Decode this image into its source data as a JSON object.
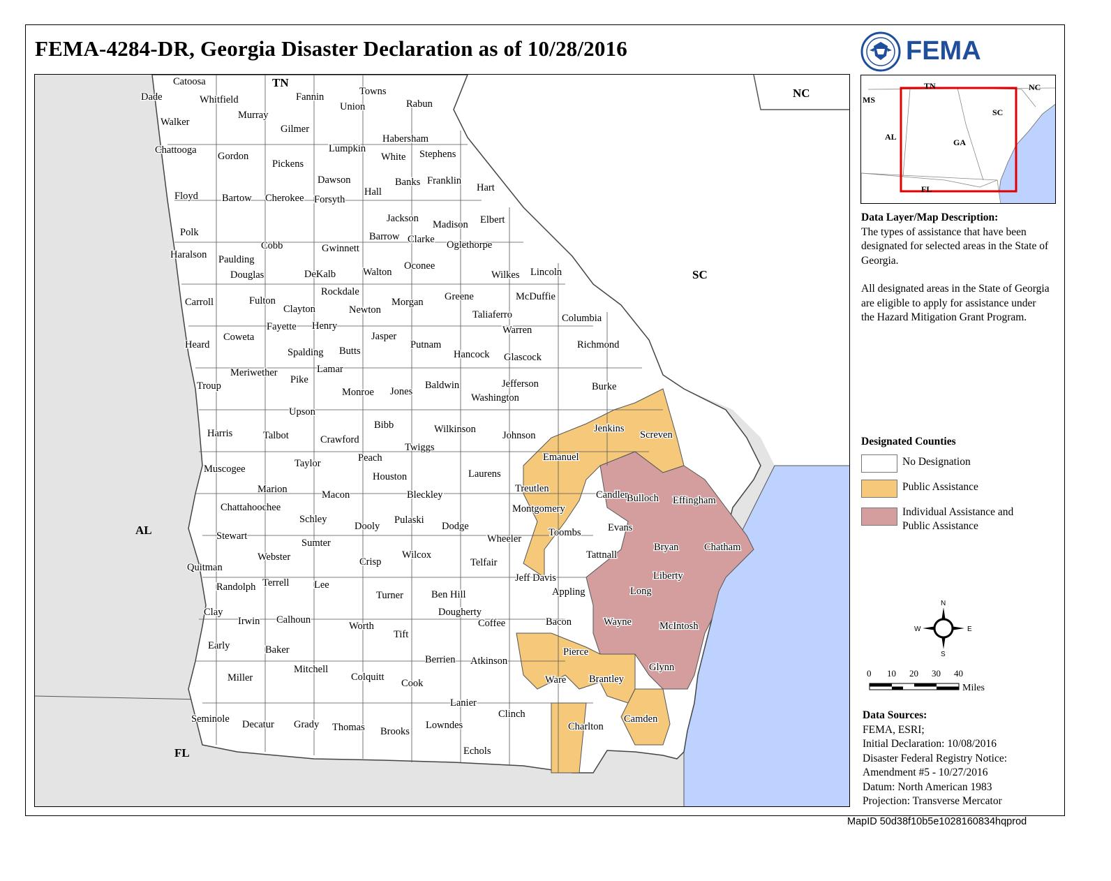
{
  "title": "FEMA-4284-DR, Georgia Disaster Declaration as of 10/28/2016",
  "logo": {
    "text": "FEMA",
    "icon": "dhs-seal-icon"
  },
  "colors": {
    "no_designation": "#ffffff",
    "public_assistance": "#f5c87a",
    "individual_public_assistance": "#d59e9e",
    "water": "#bed2ff",
    "neighbor_land": "#e4e4e4"
  },
  "map": {
    "state_labels": [
      "TN",
      "NC",
      "SC",
      "AL",
      "FL"
    ],
    "counties": [
      "Catoosa",
      "Dade",
      "Whitfield",
      "Murray",
      "Walker",
      "Fannin",
      "Union",
      "Towns",
      "Rabun",
      "Gilmer",
      "Chattooga",
      "Gordon",
      "Pickens",
      "Lumpkin",
      "Habersham",
      "White",
      "Stephens",
      "Floyd",
      "Bartow",
      "Cherokee",
      "Dawson",
      "Forsyth",
      "Hall",
      "Banks",
      "Franklin",
      "Hart",
      "Jackson",
      "Madison",
      "Elbert",
      "Polk",
      "Haralson",
      "Cobb",
      "Paulding",
      "Douglas",
      "Barrow",
      "Clarke",
      "Oglethorpe",
      "Gwinnett",
      "DeKalb",
      "Walton",
      "Oconee",
      "Wilkes",
      "Lincoln",
      "Carroll",
      "Fulton",
      "Rockdale",
      "Newton",
      "Morgan",
      "Greene",
      "McDuffie",
      "Columbia",
      "Clayton",
      "Fayette",
      "Henry",
      "Taliaferro",
      "Warren",
      "Heard",
      "Coweta",
      "Spalding",
      "Butts",
      "Jasper",
      "Putnam",
      "Hancock",
      "Glascock",
      "Richmond",
      "Meriwether",
      "Lamar",
      "Pike",
      "Troup",
      "Monroe",
      "Jones",
      "Baldwin",
      "Jefferson",
      "Burke",
      "Washington",
      "Upson",
      "Bibb",
      "Harris",
      "Talbot",
      "Crawford",
      "Wilkinson",
      "Johnson",
      "Jenkins",
      "Screven",
      "Twiggs",
      "Emanuel",
      "Peach",
      "Taylor",
      "Muscogee",
      "Houston",
      "Laurens",
      "Marion",
      "Macon",
      "Bleckley",
      "Treutlen",
      "Candler",
      "Bulloch",
      "Effingham",
      "Chattahoochee",
      "Montgomery",
      "Schley",
      "Dooly",
      "Pulaski",
      "Dodge",
      "Evans",
      "Toombs",
      "Stewart",
      "Sumter",
      "Wheeler",
      "Bryan",
      "Chatham",
      "Webster",
      "Crisp",
      "Wilcox",
      "Telfair",
      "Tattnall",
      "Quitman",
      "Terrell",
      "Lee",
      "Randolph",
      "Liberty",
      "Jeff Davis",
      "Turner",
      "Ben Hill",
      "Appling",
      "Long",
      "Clay",
      "Irwin",
      "Calhoun",
      "Dougherty",
      "Coffee",
      "Bacon",
      "Wayne",
      "McIntosh",
      "Worth",
      "Tift",
      "Early",
      "Baker",
      "Pierce",
      "Berrien",
      "Atkinson",
      "Mitchell",
      "Miller",
      "Colquitt",
      "Cook",
      "Ware",
      "Brantley",
      "Glynn",
      "Lanier",
      "Seminole",
      "Decatur",
      "Grady",
      "Thomas",
      "Brooks",
      "Lowndes",
      "Clinch",
      "Charlton",
      "Camden",
      "Echols"
    ]
  },
  "inset": {
    "labels": [
      "TN",
      "NC",
      "MS",
      "SC",
      "AL",
      "GA",
      "FL"
    ]
  },
  "description": {
    "heading": "Data Layer/Map Description:",
    "para1": "The types of assistance that have been designated for selected areas in the State of Georgia.",
    "para2": "All designated areas in the State of Georgia are eligible to apply for assistance under the Hazard Mitigation Grant Program."
  },
  "legend": {
    "title": "Designated Counties",
    "items": [
      {
        "label": "No Designation",
        "color": "#ffffff"
      },
      {
        "label": "Public Assistance",
        "color": "#f5c87a"
      },
      {
        "label": "Individual Assistance and Public Assistance",
        "color": "#d59e9e"
      }
    ]
  },
  "compass": {
    "n": "N",
    "s": "S",
    "e": "E",
    "w": "W"
  },
  "scale": {
    "ticks": [
      "0",
      "10",
      "20",
      "30",
      "40"
    ],
    "unit": "Miles"
  },
  "sources": {
    "heading": "Data Sources:",
    "lines": [
      "FEMA, ESRI;",
      "Initial Declaration: 10/08/2016",
      "Disaster Federal Registry Notice:",
      "Amendment #5 - 10/27/2016",
      "Datum: North American 1983",
      "Projection: Transverse Mercator"
    ]
  },
  "map_id": "MapID 50d38f10b5e1028160834hqprod"
}
